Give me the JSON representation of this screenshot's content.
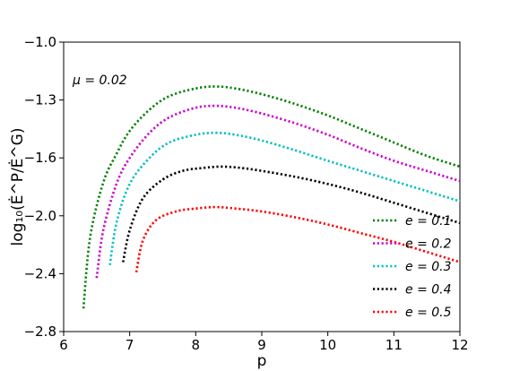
{
  "chart_data": {
    "type": "line",
    "title": "",
    "xlabel": "p",
    "ylabel": "log₁₀(Ė^P/Ė^G)",
    "xlim": [
      6,
      12
    ],
    "ylim": [
      -2.8,
      -1.0
    ],
    "xticks": [
      6,
      7,
      8,
      9,
      10,
      11,
      12
    ],
    "xtick_labels": [
      "6",
      "7",
      "8",
      "9",
      "10",
      "11",
      "12"
    ],
    "yticks": [
      -1.0,
      -1.3,
      -1.6,
      -2.0,
      -2.4,
      -2.8
    ],
    "ytick_labels": [
      "−1.0",
      "−1.3",
      "−1.6",
      "−2.0",
      "−2.4",
      "−2.8"
    ],
    "annotation": "μ = 0.02",
    "grid": false,
    "legend_position": "lower-right",
    "line_style": "dotted",
    "series": [
      {
        "name": "e = 0.1",
        "color": "#008000",
        "x": [
          6.3,
          6.4,
          6.6,
          6.8,
          7.0,
          7.3,
          7.6,
          8.0,
          8.3,
          8.6,
          9.0,
          9.5,
          10.0,
          10.5,
          11.0,
          11.5,
          12.0
        ],
        "y": [
          -2.64,
          -2.15,
          -1.77,
          -1.58,
          -1.46,
          -1.35,
          -1.28,
          -1.24,
          -1.23,
          -1.24,
          -1.27,
          -1.32,
          -1.38,
          -1.45,
          -1.52,
          -1.59,
          -1.66
        ]
      },
      {
        "name": "e = 0.2",
        "color": "#cc00cc",
        "x": [
          6.5,
          6.6,
          6.8,
          7.0,
          7.3,
          7.6,
          8.0,
          8.3,
          8.6,
          9.0,
          9.5,
          10.0,
          10.5,
          11.0,
          11.5,
          12.0
        ],
        "y": [
          -2.43,
          -2.1,
          -1.78,
          -1.6,
          -1.47,
          -1.39,
          -1.34,
          -1.33,
          -1.34,
          -1.37,
          -1.42,
          -1.48,
          -1.55,
          -1.62,
          -1.69,
          -1.76
        ]
      },
      {
        "name": "e = 0.3",
        "color": "#00bfbf",
        "x": [
          6.7,
          6.8,
          7.0,
          7.3,
          7.6,
          8.0,
          8.3,
          8.6,
          9.0,
          9.5,
          10.0,
          10.5,
          11.0,
          11.5,
          12.0
        ],
        "y": [
          -2.34,
          -2.05,
          -1.78,
          -1.6,
          -1.52,
          -1.48,
          -1.47,
          -1.48,
          -1.51,
          -1.56,
          -1.62,
          -1.69,
          -1.76,
          -1.83,
          -1.9
        ]
      },
      {
        "name": "e = 0.4",
        "color": "#000000",
        "x": [
          6.9,
          7.0,
          7.2,
          7.5,
          7.8,
          8.1,
          8.4,
          8.7,
          9.0,
          9.5,
          10.0,
          10.5,
          11.0,
          11.5,
          12.0
        ],
        "y": [
          -2.32,
          -2.1,
          -1.88,
          -1.75,
          -1.69,
          -1.67,
          -1.66,
          -1.67,
          -1.69,
          -1.73,
          -1.78,
          -1.84,
          -1.91,
          -1.98,
          -2.05
        ]
      },
      {
        "name": "e = 0.5",
        "color": "#ff0000",
        "x": [
          7.1,
          7.2,
          7.4,
          7.7,
          8.0,
          8.3,
          8.6,
          9.0,
          9.5,
          10.0,
          10.5,
          11.0,
          11.5,
          12.0
        ],
        "y": [
          -2.39,
          -2.17,
          -2.03,
          -1.97,
          -1.95,
          -1.94,
          -1.95,
          -1.97,
          -2.01,
          -2.06,
          -2.12,
          -2.18,
          -2.25,
          -2.32
        ]
      }
    ]
  }
}
